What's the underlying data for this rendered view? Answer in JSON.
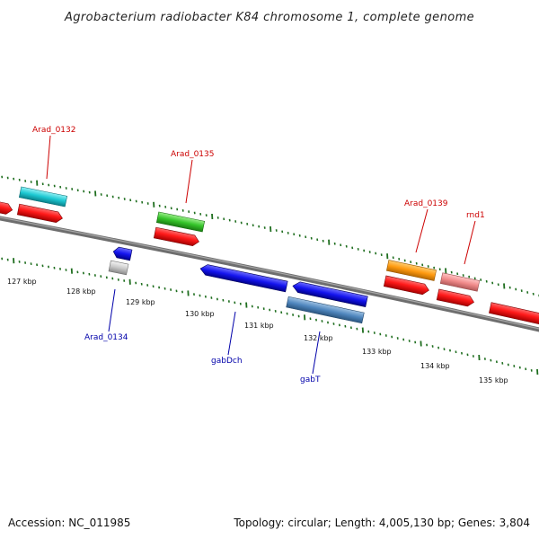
{
  "title": "Agrobacterium radiobacter K84 chromosome 1, complete genome",
  "footer": {
    "accession": "Accession: NC_011985",
    "summary": "Topology: circular; Length: 4,005,130 bp; Genes: 3,804"
  },
  "colors": {
    "forward_label": "#cc0000",
    "reverse_label": "#0000aa",
    "backbone": "#808080",
    "tick": "#1f6e1f"
  },
  "kbp_labels": [
    "127 kbp",
    "128 kbp",
    "129 kbp",
    "130 kbp",
    "131 kbp",
    "132 kbp",
    "133 kbp",
    "134 kbp",
    "135 kbp"
  ],
  "gene_labels": [
    {
      "text": "Arad_0132",
      "strand": "forward"
    },
    {
      "text": "Arad_0135",
      "strand": "forward"
    },
    {
      "text": "Arad_0139",
      "strand": "forward"
    },
    {
      "text": "rnd1",
      "strand": "forward"
    },
    {
      "text": "Arad_0134",
      "strand": "reverse"
    },
    {
      "text": "gabDch",
      "strand": "reverse"
    },
    {
      "text": "gabT",
      "strand": "reverse"
    }
  ]
}
